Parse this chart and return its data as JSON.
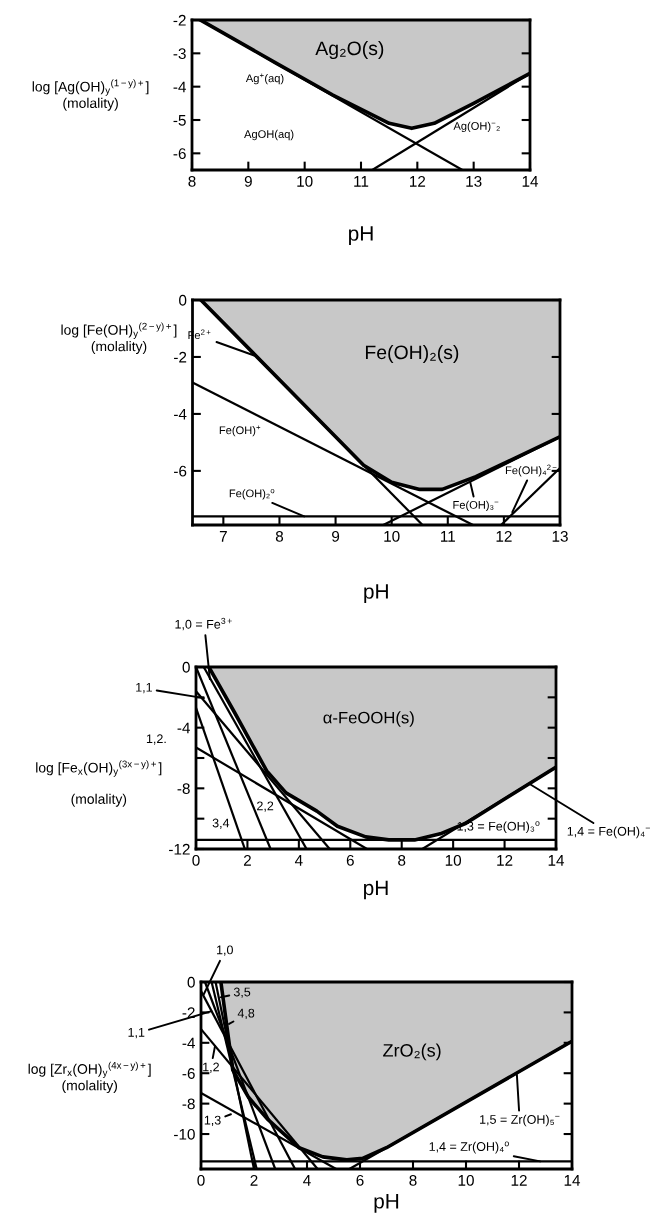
{
  "chart_data": [
    {
      "type": "line",
      "xlabel": "pH",
      "ylabel": "log [Ag(OH)$_{y}$$^{(1−y)+}$]\n(molality)",
      "xlim": [
        8,
        14
      ],
      "ylim": [
        -6.5,
        -2
      ],
      "xticks": [
        8,
        9,
        10,
        11,
        12,
        13,
        14
      ],
      "yticks": [
        -2,
        -3,
        -4,
        -5,
        -6
      ],
      "series": [
        {
          "type": "area",
          "color": "#c8c8c8",
          "x": [
            8.15,
            9.5,
            10.5,
            11.5,
            11.9,
            12.3,
            13,
            14
          ],
          "values": [
            -2,
            -3.3,
            -4.25,
            -5.1,
            -5.25,
            -5.1,
            -4.5,
            -3.6
          ]
        },
        {
          "color": "#000000",
          "x": [
            8.15,
            12.8
          ],
          "values": [
            -2,
            -6.5
          ]
        },
        {
          "color": "#000000",
          "x": [
            11.2,
            14
          ],
          "values": [
            -6.5,
            -3.6
          ]
        }
      ],
      "annotations": [
        "Ag₂O(s)",
        "Ag$^{+}$(aq)",
        "AgOH(aq)",
        "Ag(OH)$^{−}$₂"
      ]
    },
    {
      "type": "line",
      "xlabel": "pH",
      "ylabel": "log [Fe(OH)$_{y}$$^{(2−y)+}$]\n(molality)",
      "xlim": [
        6.45,
        13
      ],
      "ylim": [
        -7.9,
        0
      ],
      "xticks": [
        7,
        8,
        9,
        10,
        11,
        12,
        13
      ],
      "yticks": [
        0,
        -2,
        -4,
        -6
      ],
      "series": [
        {
          "type": "area",
          "color": "#c8c8c8",
          "x": [
            6.6,
            8,
            9,
            9.5,
            10,
            10.5,
            10.9,
            11.5,
            12.2,
            13
          ],
          "values": [
            0,
            -2.8,
            -4.8,
            -5.8,
            -6.4,
            -6.65,
            -6.65,
            -6.2,
            -5.55,
            -4.8
          ]
        },
        {
          "color": "#000000",
          "x": [
            6.6,
            10.55
          ],
          "values": [
            0,
            -7.9
          ]
        },
        {
          "color": "#000000",
          "x": [
            6.45,
            11.45
          ],
          "values": [
            -2.9,
            -7.9
          ]
        },
        {
          "color": "#000000",
          "x": [
            6.45,
            13
          ],
          "values": [
            -7.6,
            -7.6
          ]
        },
        {
          "color": "#000000",
          "x": [
            9.85,
            13
          ],
          "values": [
            -7.9,
            -4.8
          ]
        },
        {
          "color": "#000000",
          "x": [
            11.95,
            13
          ],
          "values": [
            -7.9,
            -5.9
          ]
        }
      ],
      "annotations": [
        "Fe(OH)₂(s)",
        {
          "text": "Fe$^{2+}$",
          "x": 7.55,
          "y": -1.95
        },
        "Fe(OH)$^{+}$",
        {
          "text": "Fe(OH)₂$^{o}$",
          "x": 8.44,
          "y": -7.6
        },
        {
          "text": "Fe(OH)₃$^{−}$",
          "x": 11.4,
          "y": -6.4
        },
        {
          "text": "Fe(OH)₄$^{2−}$",
          "x": 12.15,
          "y": -7.45
        }
      ]
    },
    {
      "type": "line",
      "xlabel": "pH",
      "ylabel": "log [Fe$_{x}$(OH)$_{y}$$^{(3x−y)+}$]\n\n(molality)",
      "xlim": [
        0,
        14
      ],
      "ylim": [
        -12,
        0
      ],
      "xticks": [
        0,
        2,
        4,
        6,
        8,
        10,
        12,
        14
      ],
      "yticks": [
        0,
        {
          "value": -2,
          "label": null
        },
        -4,
        {
          "value": -6,
          "label": null
        },
        -8,
        {
          "value": -10,
          "label": null
        },
        -12
      ],
      "series": [
        {
          "type": "area",
          "color": "#c8c8c8",
          "x": [
            0.5,
            1.5,
            2.75,
            3.5,
            4.7,
            5.5,
            6.6,
            7.5,
            8.5,
            9.5,
            10.5,
            12,
            14
          ],
          "values": [
            0,
            -3,
            -6.85,
            -8.3,
            -9.5,
            -10.5,
            -11.2,
            -11.4,
            -11.4,
            -11,
            -10.3,
            -8.7,
            -6.6
          ]
        },
        {
          "color": "#000000",
          "x": [
            0,
            2.9
          ],
          "values": [
            0,
            -12
          ]
        },
        {
          "color": "#000000",
          "x": [
            0,
            1.9
          ],
          "values": [
            -2.7,
            -12
          ]
        },
        {
          "color": "#000000",
          "x": [
            0.3,
            4.3
          ],
          "values": [
            0,
            -12
          ]
        },
        {
          "color": "#000000",
          "x": [
            0,
            5.2
          ],
          "values": [
            -1.6,
            -12
          ]
        },
        {
          "color": "#000000",
          "x": [
            0,
            6.65
          ],
          "values": [
            -5.3,
            -12
          ]
        },
        {
          "color": "#000000",
          "x": [
            0,
            14
          ],
          "values": [
            -11.4,
            -11.4
          ]
        },
        {
          "color": "#000000",
          "x": [
            8.8,
            14
          ],
          "values": [
            -12,
            -6.6
          ]
        }
      ],
      "annotations": [
        "α-FeOOH(s)",
        {
          "text": "1,0 = Fe$^{3+}$",
          "x": 0.54,
          "y": -0.8
        },
        {
          "text": "1,1",
          "x": 0.31,
          "y": -2.05
        },
        "1,2.",
        "2,2",
        "3,4",
        "1,3 = Fe(OH)₃$^{o}$",
        {
          "text": "1,4 = Fe(OH)₄$^{−}$",
          "x": 12.96,
          "y": -7.7
        }
      ]
    },
    {
      "type": "line",
      "xlabel": "pH",
      "ylabel": "log [Zr$_{x}$(OH)$_{y}$$^{(4x−y)+}$]\n(molality)",
      "xlim": [
        0,
        14
      ],
      "ylim": [
        -12.3,
        0
      ],
      "xticks": [
        0,
        2,
        4,
        6,
        8,
        10,
        12,
        14
      ],
      "yticks": [
        0,
        -2,
        -4,
        -6,
        -8,
        -10
      ],
      "series": [
        {
          "type": "area",
          "color": "#c8c8c8",
          "x": [
            0.75,
            1.2,
            1.8,
            2.5,
            3.7,
            4.6,
            5.5,
            6.1,
            7,
            14
          ],
          "values": [
            0,
            -5.8,
            -7.6,
            -9.0,
            -10.9,
            -11.5,
            -11.7,
            -11.6,
            -10.9,
            -3.9
          ]
        },
        {
          "color": "#000000",
          "x": [
            0.15,
            2.8
          ],
          "values": [
            0,
            -12.3
          ]
        },
        {
          "color": "#000000",
          "x": [
            0.4,
            2.1
          ],
          "values": [
            0,
            -12.3
          ]
        },
        {
          "color": "#000000",
          "x": [
            0.55,
            2.0
          ],
          "values": [
            0,
            -12.3
          ]
        },
        {
          "color": "#000000",
          "x": [
            0,
            3.55
          ],
          "values": [
            -0.6,
            -12.3
          ]
        },
        {
          "color": "#000000",
          "x": [
            0,
            4.4
          ],
          "values": [
            -3.1,
            -12.3
          ]
        },
        {
          "color": "#000000",
          "x": [
            0,
            5.1
          ],
          "values": [
            -7.3,
            -12.3
          ]
        },
        {
          "color": "#000000",
          "x": [
            0,
            14
          ],
          "values": [
            -11.8,
            -11.8
          ]
        },
        {
          "color": "#000000",
          "x": [
            5.6,
            14
          ],
          "values": [
            -12.3,
            -3.9
          ]
        }
      ],
      "annotations": [
        "ZrO₂(s)",
        {
          "text": "1,0",
          "x": 0.11,
          "y": -0.79
        },
        {
          "text": "3,5",
          "x": 0.75,
          "y": -1.0
        },
        {
          "text": "4,8",
          "x": 1.06,
          "y": -2.76
        },
        {
          "text": "1,1",
          "x": 0.4,
          "y": -1.92
        },
        {
          "text": "1,2",
          "x": 0.53,
          "y": -4.2
        },
        {
          "text": "1,3",
          "x": 1.13,
          "y": -8.7
        },
        {
          "text": "1,5 = Zr(OH)₅$^{−}$",
          "x": 11.92,
          "y": -6.1
        },
        {
          "text": "1,4 = Zr(OH)₄$^{o}$",
          "x": 12.8,
          "y": -11.8
        }
      ]
    }
  ]
}
